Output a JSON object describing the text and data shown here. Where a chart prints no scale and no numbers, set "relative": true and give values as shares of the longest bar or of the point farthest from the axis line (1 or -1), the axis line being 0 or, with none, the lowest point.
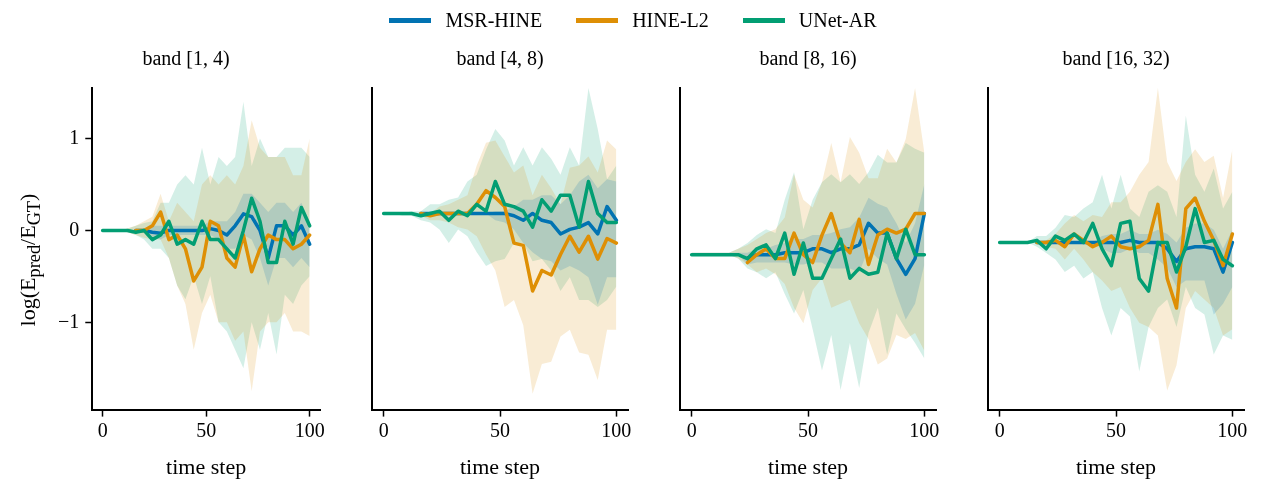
{
  "chart_data": [
    {
      "type": "line",
      "title": "band [1, 4)",
      "xlabel": "time step",
      "ylabel": "log(E$_{pred}$/E$_{GT}$)",
      "legend": "top",
      "xlim": [
        -5,
        105
      ],
      "xticks": [
        0,
        50,
        100
      ],
      "ylim": [
        -1.95,
        1.55
      ],
      "yticks": [
        -1,
        0,
        1
      ],
      "x": [
        0,
        4,
        8,
        12,
        16,
        20,
        24,
        28,
        32,
        36,
        40,
        44,
        48,
        52,
        56,
        60,
        64,
        68,
        72,
        76,
        80,
        84,
        88,
        92,
        96,
        100
      ],
      "series": [
        {
          "name": "MSR-HINE",
          "color": "#0173b2",
          "values": [
            null,
            null,
            null,
            null,
            0,
            0,
            -0.02,
            -0.03,
            0,
            0,
            0,
            0,
            0,
            0.02,
            0,
            -0.05,
            0.05,
            0.18,
            0.15,
            0,
            -0.3,
            0.05,
            0.05,
            -0.05,
            0.05,
            -0.15
          ],
          "lower": [
            0,
            0,
            0,
            0,
            0,
            -0.02,
            -0.08,
            -0.1,
            -0.05,
            -0.05,
            -0.05,
            -0.05,
            -0.05,
            -0.05,
            -0.1,
            -0.2,
            -0.2,
            -0.05,
            -0.1,
            -0.3,
            -0.6,
            -0.3,
            -0.3,
            -0.4,
            -0.3,
            -0.4
          ],
          "upper": [
            0,
            0,
            0,
            0,
            0,
            0.02,
            0.05,
            0.05,
            0.05,
            0.05,
            0.05,
            0.05,
            0.05,
            0.1,
            0.1,
            0.1,
            0.2,
            0.4,
            0.4,
            0.3,
            0.2,
            0.3,
            0.3,
            0.2,
            0.3,
            0.1
          ]
        },
        {
          "name": "HINE-L2",
          "color": "#de8f05",
          "values": [
            null,
            null,
            null,
            null,
            0,
            0,
            0.05,
            0.2,
            -0.1,
            -0.05,
            -0.2,
            -0.55,
            -0.4,
            0.1,
            0.05,
            -0.3,
            -0.4,
            -0.05,
            -0.45,
            -0.2,
            -0.05,
            -0.1,
            -0.1,
            -0.2,
            -0.15,
            -0.05
          ],
          "lower": [
            0,
            0,
            0,
            -0.02,
            -0.05,
            -0.08,
            -0.1,
            -0.1,
            -0.3,
            -0.6,
            -0.8,
            -1.3,
            -0.9,
            -0.7,
            -1,
            -1,
            -1.2,
            -1.1,
            -1.75,
            -1.1,
            -1,
            -1,
            -0.9,
            -1.1,
            -1.1,
            -1.15
          ],
          "upper": [
            0,
            0,
            0,
            0.02,
            0.05,
            0.1,
            0.15,
            0.4,
            0.1,
            0.3,
            0.2,
            0.1,
            0.5,
            0.6,
            0.5,
            0.6,
            0.5,
            0.7,
            1.2,
            0.9,
            0.8,
            0.8,
            0.8,
            0.6,
            0.6,
            1
          ]
        },
        {
          "name": "UNet-AR",
          "color": "#029e73",
          "values": [
            0,
            0,
            0,
            0,
            -0.02,
            0,
            -0.1,
            -0.05,
            0.1,
            -0.15,
            -0.1,
            -0.15,
            0.1,
            -0.1,
            -0.1,
            -0.2,
            -0.3,
            0,
            0.35,
            0.1,
            -0.35,
            -0.35,
            0.1,
            -0.15,
            0.25,
            0.05
          ],
          "lower": [
            0,
            0,
            0,
            -0.02,
            -0.05,
            -0.1,
            -0.2,
            -0.2,
            -0.3,
            -0.6,
            -0.75,
            -0.5,
            -0.8,
            -0.5,
            -1,
            -1.1,
            -1.3,
            -1.5,
            -1,
            -1.3,
            -0.9,
            -1.35,
            -0.7,
            -0.8,
            -0.6,
            -0.5
          ],
          "upper": [
            0,
            0,
            0,
            0.02,
            0.05,
            0.08,
            0.1,
            0.3,
            0.3,
            0.5,
            0.6,
            0.5,
            0.9,
            0.5,
            0.8,
            0.7,
            0.8,
            1.4,
            0.7,
            1,
            0.8,
            0.8,
            0.9,
            0.9,
            0.9,
            0.8
          ]
        }
      ]
    },
    {
      "type": "line",
      "title": "band [4, 8)",
      "xlabel": "time step",
      "relative": true,
      "xlim": [
        -5,
        105
      ],
      "xticks": [
        0,
        50,
        100
      ],
      "x": [
        0,
        4,
        8,
        12,
        16,
        20,
        24,
        28,
        32,
        36,
        40,
        44,
        48,
        52,
        56,
        60,
        64,
        68,
        72,
        76,
        80,
        84,
        88,
        92,
        96,
        100
      ],
      "series": [
        {
          "color": "#0173b2",
          "values": [
            null,
            null,
            null,
            null,
            0.86,
            0.86,
            0.86,
            0.86,
            0.86,
            0.86,
            0.86,
            0.86,
            0.86,
            0.86,
            0.85,
            0.83,
            0.86,
            0.83,
            0.82,
            0.77,
            0.79,
            0.8,
            0.82,
            0.77,
            0.89,
            0.83
          ],
          "lower": [
            0.86,
            0.86,
            0.86,
            0.86,
            0.86,
            0.86,
            0.86,
            0.86,
            0.86,
            0.86,
            0.86,
            0.86,
            0.83,
            0.82,
            0.79,
            0.73,
            0.69,
            0.66,
            0.65,
            0.61,
            0.63,
            0.61,
            0.58,
            0.46,
            0.58,
            0.58
          ],
          "upper": [
            0.86,
            0.86,
            0.86,
            0.86,
            0.86,
            0.86,
            0.86,
            0.86,
            0.86,
            0.86,
            0.86,
            0.86,
            0.87,
            0.87,
            0.89,
            0.92,
            0.92,
            0.94,
            0.94,
            0.9,
            0.94,
            1,
            1.03,
            0.97,
            1.01,
            1
          ]
        },
        {
          "color": "#de8f05",
          "values": [
            null,
            null,
            null,
            null,
            0.86,
            0.85,
            0.86,
            0.86,
            0.86,
            0.86,
            0.9,
            0.96,
            0.93,
            0.89,
            0.73,
            0.72,
            0.52,
            0.61,
            0.59,
            0.68,
            0.76,
            0.69,
            0.76,
            0.66,
            0.75,
            0.73
          ],
          "lower": [
            0.86,
            0.86,
            0.86,
            0.86,
            0.85,
            0.83,
            0.83,
            0.82,
            0.8,
            0.79,
            0.76,
            0.68,
            0.61,
            0.45,
            0.48,
            0.37,
            0.07,
            0.2,
            0.21,
            0.32,
            0.35,
            0.25,
            0.24,
            0.13,
            0.35,
            0.35
          ],
          "upper": [
            0.86,
            0.86,
            0.86,
            0.86,
            0.86,
            0.86,
            0.89,
            0.9,
            0.92,
            0.94,
            1.07,
            1.17,
            1.18,
            1.11,
            1.04,
            1.07,
            0.94,
            1.03,
            0.97,
            0.9,
            1.06,
            1.07,
            1.11,
            1.04,
            1.18,
            1.14
          ]
        },
        {
          "color": "#029e73",
          "values": [
            0.86,
            0.86,
            0.86,
            0.86,
            0.85,
            0.86,
            0.87,
            0.83,
            0.87,
            0.85,
            0.9,
            0.87,
            1,
            0.9,
            0.89,
            0.87,
            0.8,
            0.92,
            0.87,
            0.94,
            0.94,
            0.8,
            1,
            0.86,
            0.82,
            0.82
          ],
          "lower": [
            0.86,
            0.86,
            0.85,
            0.85,
            0.83,
            0.82,
            0.79,
            0.73,
            0.79,
            0.76,
            0.69,
            0.63,
            0.65,
            0.66,
            0.73,
            0.73,
            0.65,
            0.66,
            0.61,
            0.52,
            0.58,
            0.48,
            0.48,
            0.45,
            0.48,
            0.54
          ],
          "upper": [
            0.86,
            0.86,
            0.86,
            0.87,
            0.87,
            0.9,
            0.9,
            0.92,
            0.93,
            1,
            1.03,
            1.14,
            1.23,
            1.18,
            1.07,
            1.15,
            1.07,
            1.15,
            1.1,
            1.03,
            1.15,
            1.07,
            1.41,
            1.23,
            1.01,
            1.07
          ]
        }
      ]
    },
    {
      "type": "line",
      "title": "band [8, 16)",
      "xlabel": "time step",
      "relative": true,
      "xlim": [
        -5,
        105
      ],
      "xticks": [
        0,
        50,
        100
      ],
      "x": [
        0,
        4,
        8,
        12,
        16,
        20,
        24,
        28,
        32,
        36,
        40,
        44,
        48,
        52,
        56,
        60,
        64,
        68,
        72,
        76,
        80,
        84,
        88,
        92,
        96,
        100
      ],
      "series": [
        {
          "color": "#0173b2",
          "values": [
            null,
            null,
            null,
            null,
            null,
            null,
            0.77,
            0.79,
            0.79,
            0.79,
            0.8,
            0.8,
            0.8,
            0.82,
            0.82,
            0.8,
            0.82,
            0.82,
            0.84,
            0.95,
            0.9,
            0.9,
            0.77,
            0.69,
            0.77,
            1
          ],
          "lower": [
            0.79,
            0.79,
            0.79,
            0.79,
            0.79,
            0.79,
            0.74,
            0.75,
            0.75,
            0.75,
            0.75,
            0.74,
            0.74,
            0.75,
            0.75,
            0.72,
            0.72,
            0.72,
            0.7,
            0.82,
            0.77,
            0.74,
            0.59,
            0.46,
            0.54,
            0.74
          ],
          "upper": [
            0.8,
            0.8,
            0.8,
            0.8,
            0.8,
            0.8,
            0.8,
            0.82,
            0.82,
            0.84,
            0.85,
            0.87,
            0.87,
            0.89,
            0.89,
            0.9,
            0.92,
            0.93,
            0.98,
            1.08,
            1.05,
            1.03,
            0.95,
            0.85,
            0.95,
            1.15
          ]
        },
        {
          "color": "#de8f05",
          "values": [
            null,
            null,
            null,
            null,
            null,
            null,
            0.75,
            0.79,
            0.82,
            0.77,
            0.77,
            0.9,
            0.79,
            0.75,
            0.89,
            1,
            0.85,
            0.8,
            0.97,
            0.74,
            0.89,
            0.92,
            0.9,
            0.92,
            1,
            1
          ],
          "lower": [
            0.79,
            0.79,
            0.79,
            0.79,
            0.79,
            0.77,
            0.74,
            0.7,
            0.72,
            0.69,
            0.64,
            0.52,
            0.44,
            0.61,
            0.67,
            0.52,
            0.54,
            0.56,
            0.44,
            0.36,
            0.23,
            0.26,
            0.38,
            0.36,
            0.39,
            0.3
          ],
          "upper": [
            0.8,
            0.8,
            0.8,
            0.8,
            0.8,
            0.82,
            0.84,
            0.87,
            0.9,
            0.92,
            0.98,
            1.2,
            1.07,
            1.03,
            1.16,
            1.36,
            1.16,
            1.39,
            1.31,
            1.18,
            1.18,
            1.33,
            1.26,
            1.38,
            1.64,
            1.31
          ]
        },
        {
          "color": "#029e73",
          "values": [
            0.79,
            0.79,
            0.79,
            0.79,
            0.79,
            0.79,
            0.77,
            0.82,
            0.84,
            0.77,
            0.9,
            0.69,
            0.85,
            0.67,
            0.67,
            0.77,
            0.87,
            0.67,
            0.72,
            0.69,
            0.7,
            0.9,
            0.77,
            0.92,
            0.79,
            0.79
          ],
          "lower": [
            0.79,
            0.79,
            0.79,
            0.79,
            0.79,
            0.77,
            0.72,
            0.7,
            0.67,
            0.7,
            0.59,
            0.49,
            0.61,
            0.41,
            0.2,
            0.38,
            0.1,
            0.34,
            0.11,
            0.39,
            0.52,
            0.28,
            0.49,
            0.41,
            0.34,
            0.26
          ],
          "upper": [
            0.8,
            0.8,
            0.8,
            0.8,
            0.8,
            0.82,
            0.85,
            0.89,
            0.92,
            0.9,
            1.07,
            1.21,
            0.92,
            1.07,
            1.16,
            1.2,
            1.16,
            1.2,
            1.15,
            1.21,
            1.3,
            1.26,
            1.26,
            1.36,
            1.33,
            1.31
          ]
        }
      ]
    },
    {
      "type": "line",
      "title": "band [16, 32)",
      "xlabel": "time step",
      "relative": true,
      "xlim": [
        -5,
        105
      ],
      "xticks": [
        0,
        50,
        100
      ],
      "x": [
        0,
        4,
        8,
        12,
        16,
        20,
        24,
        28,
        32,
        36,
        40,
        44,
        48,
        52,
        56,
        60,
        64,
        68,
        72,
        76,
        80,
        84,
        88,
        92,
        96,
        100
      ],
      "series": [
        {
          "color": "#0173b2",
          "values": [
            null,
            null,
            null,
            null,
            0.79,
            0.79,
            0.79,
            0.79,
            0.79,
            0.79,
            0.79,
            0.79,
            0.79,
            0.79,
            0.8,
            0.79,
            0.79,
            0.79,
            0.76,
            0.7,
            0.76,
            0.77,
            0.77,
            0.76,
            0.65,
            0.79
          ],
          "lower": [
            0.79,
            0.79,
            0.79,
            0.79,
            0.79,
            0.79,
            0.79,
            0.79,
            0.79,
            0.79,
            0.79,
            0.76,
            0.74,
            0.74,
            0.76,
            0.74,
            0.74,
            0.71,
            0.67,
            0.58,
            0.61,
            0.61,
            0.61,
            0.45,
            0.5,
            0.58
          ],
          "upper": [
            0.79,
            0.79,
            0.79,
            0.79,
            0.79,
            0.79,
            0.79,
            0.79,
            0.79,
            0.79,
            0.79,
            0.82,
            0.83,
            0.83,
            0.85,
            0.83,
            0.83,
            0.85,
            0.83,
            0.79,
            0.86,
            0.88,
            0.88,
            0.85,
            0.76,
            0.85
          ]
        },
        {
          "color": "#de8f05",
          "values": [
            null,
            null,
            null,
            null,
            0.79,
            0.79,
            0.8,
            0.77,
            0.83,
            0.8,
            0.77,
            0.79,
            0.82,
            0.77,
            0.76,
            0.77,
            0.8,
            0.97,
            0.62,
            0.48,
            0.95,
            1,
            0.89,
            0.8,
            0.68,
            0.83
          ],
          "lower": [
            0.79,
            0.79,
            0.79,
            0.79,
            0.79,
            0.77,
            0.76,
            0.71,
            0.76,
            0.71,
            0.65,
            0.61,
            0.56,
            0.58,
            0.48,
            0.41,
            0.39,
            0.35,
            0.09,
            0.21,
            0.48,
            0.56,
            0.52,
            0.48,
            0.35,
            0.38
          ],
          "upper": [
            0.79,
            0.79,
            0.79,
            0.79,
            0.79,
            0.8,
            0.83,
            0.88,
            0.92,
            0.89,
            0.92,
            0.91,
            0.98,
            0.98,
            1.03,
            1.11,
            1.17,
            1.52,
            1.17,
            1.08,
            1.17,
            1.23,
            1.17,
            1.2,
            1,
            1.23
          ]
        },
        {
          "color": "#029e73",
          "values": [
            0.79,
            0.79,
            0.79,
            0.79,
            0.8,
            0.76,
            0.82,
            0.8,
            0.83,
            0.79,
            0.88,
            0.76,
            0.68,
            0.88,
            0.89,
            0.62,
            0.56,
            0.79,
            0.79,
            0.65,
            0.77,
            0.95,
            0.79,
            0.8,
            0.71,
            0.68
          ],
          "lower": [
            0.79,
            0.79,
            0.79,
            0.79,
            0.77,
            0.74,
            0.71,
            0.65,
            0.68,
            0.62,
            0.65,
            0.48,
            0.35,
            0.48,
            0.44,
            0.18,
            0.39,
            0.48,
            0.52,
            0.39,
            0.58,
            0.48,
            0.45,
            0.26,
            0.35,
            0.33
          ],
          "upper": [
            0.79,
            0.79,
            0.79,
            0.79,
            0.82,
            0.82,
            0.86,
            0.92,
            0.91,
            0.95,
            0.98,
            1.11,
            0.95,
            1.11,
            0.95,
            0.91,
            1.03,
            1.06,
            1.03,
            0.91,
            1.39,
            1.11,
            1.03,
            1.14,
            0.95,
            1.03
          ]
        }
      ]
    }
  ]
}
